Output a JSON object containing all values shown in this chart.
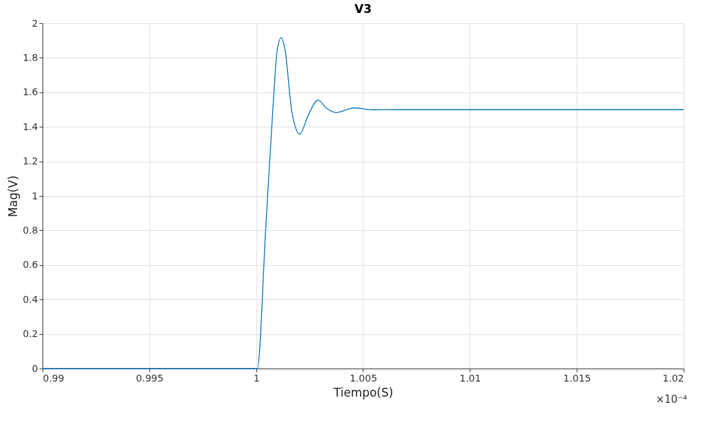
{
  "chart_data": {
    "type": "line",
    "title": "V3",
    "xlabel": "Tiempo(S)",
    "ylabel": "Mag(V)",
    "annotations": [
      "×10⁻⁴"
    ],
    "series": [
      {
        "color": "#0072bd",
        "x": [
          0.99,
          1.0,
          1.00005,
          1.00045,
          1.00077,
          1.00098,
          1.00117,
          1.00135,
          1.00167,
          1.00204,
          1.00241,
          1.00289,
          1.00331,
          1.00373,
          1.00458,
          1.00542,
          1.0065,
          1.02
        ],
        "values": [
          0,
          0,
          0,
          0.824,
          1.486,
          1.844,
          1.917,
          1.844,
          1.486,
          1.358,
          1.46,
          1.555,
          1.506,
          1.483,
          1.51,
          1.499,
          1.5,
          1.5
        ]
      }
    ],
    "xlim": [
      0.99,
      1.02
    ],
    "xticks": [
      0.99,
      0.995,
      1,
      1.005,
      1.01,
      1.015,
      1.02
    ],
    "ylim": [
      0,
      2
    ],
    "yticks": [
      0,
      0.2,
      0.4,
      0.6,
      0.8,
      1,
      1.2,
      1.4,
      1.6,
      1.8,
      2
    ],
    "grid": true,
    "legend": false
  }
}
